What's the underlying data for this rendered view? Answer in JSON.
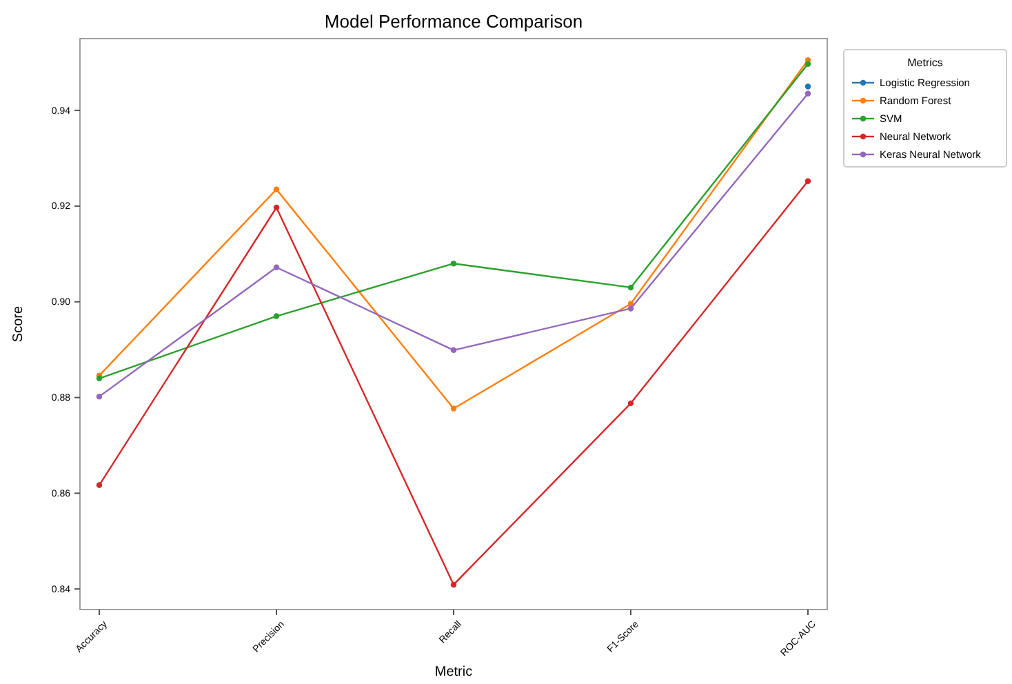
{
  "chart_data": {
    "type": "line",
    "title": "Model Performance Comparison",
    "xlabel": "Metric",
    "ylabel": "Score",
    "legend_title": "Metrics",
    "categories": [
      "Accuracy",
      "Precision",
      "Recall",
      "F1-Score",
      "ROC-AUC"
    ],
    "series": [
      {
        "name": "Logistic Regression",
        "color": "#1f77b4",
        "values": [
          null,
          null,
          null,
          null,
          0.945
        ]
      },
      {
        "name": "Random Forest",
        "color": "#ff7f0e",
        "values": [
          0.8846,
          0.9235,
          0.8777,
          0.8996,
          0.9505
        ]
      },
      {
        "name": "SVM",
        "color": "#2ca02c",
        "values": [
          0.884,
          0.897,
          0.908,
          0.903,
          0.9497
        ]
      },
      {
        "name": "Neural Network",
        "color": "#d62728",
        "values": [
          0.8617,
          0.9197,
          0.8409,
          0.8788,
          0.9252
        ]
      },
      {
        "name": "Keras Neural Network",
        "color": "#9467bd",
        "values": [
          0.8802,
          0.9072,
          0.8899,
          0.8986,
          0.9435
        ]
      }
    ],
    "ylim": [
      0.8357,
      0.955
    ],
    "yticks": [
      {
        "value": 0.84,
        "label": "0.84"
      },
      {
        "value": 0.86,
        "label": "0.86"
      },
      {
        "value": 0.88,
        "label": "0.88"
      },
      {
        "value": 0.9,
        "label": "0.90"
      },
      {
        "value": 0.92,
        "label": "0.92"
      },
      {
        "value": 0.94,
        "label": "0.94"
      }
    ],
    "legend": "right",
    "marker": "circle",
    "line_style": "solid"
  }
}
